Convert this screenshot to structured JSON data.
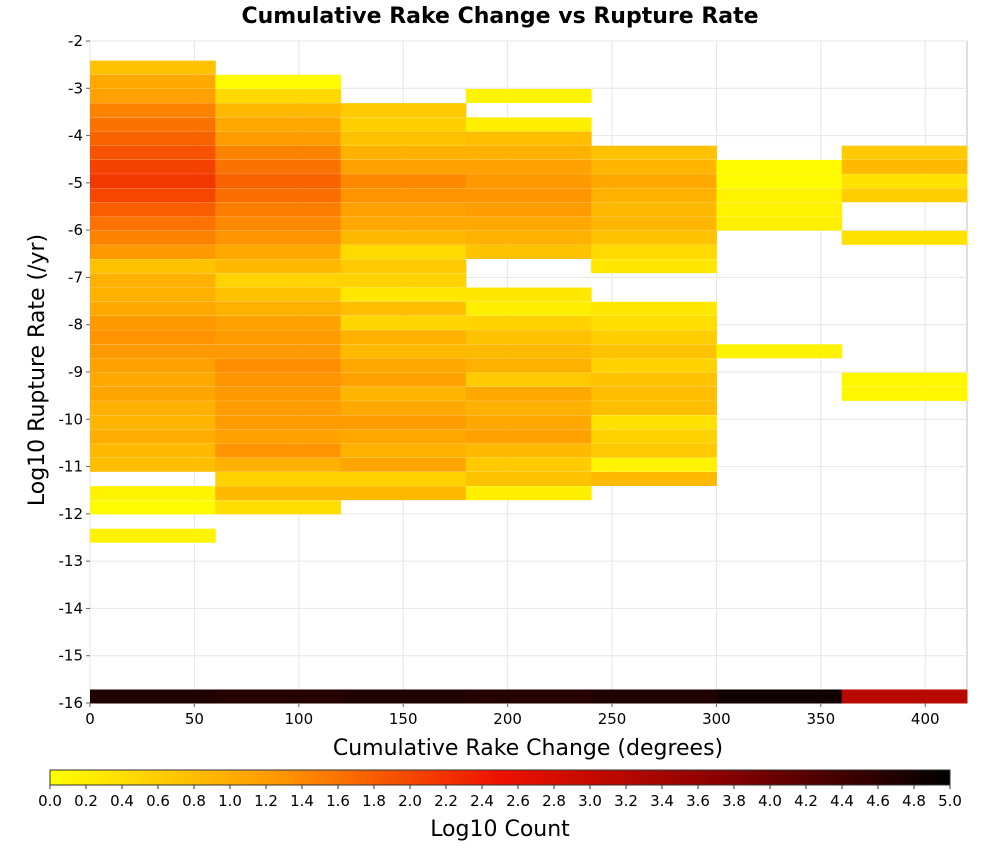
{
  "chart_data": {
    "type": "heatmap",
    "title": "Cumulative Rake Change vs Rupture Rate",
    "xlabel": "Cumulative Rake Change (degrees)",
    "ylabel": "Log10 Rupture Rate (/yr)",
    "xlim": [
      0,
      420
    ],
    "ylim": [
      -16,
      -2
    ],
    "x_ticks": [
      0,
      50,
      100,
      150,
      200,
      250,
      300,
      350,
      400
    ],
    "y_ticks": [
      -2,
      -3,
      -4,
      -5,
      -6,
      -7,
      -8,
      -9,
      -10,
      -11,
      -12,
      -13,
      -14,
      -15,
      -16
    ],
    "x_bin_width": 60,
    "y_bin_height": 0.2857,
    "grid": true,
    "colorbar": {
      "label": "Log10 Count",
      "range": [
        0,
        5
      ],
      "ticks": [
        "0.0",
        "0.2",
        "0.4",
        "0.6",
        "0.8",
        "1.0",
        "1.2",
        "1.4",
        "1.6",
        "1.8",
        "2.0",
        "2.2",
        "2.4",
        "2.6",
        "2.8",
        "3.0",
        "3.2",
        "3.4",
        "3.6",
        "3.8",
        "4.0",
        "4.2",
        "4.4",
        "4.6",
        "4.8",
        "5.0"
      ],
      "stops": [
        "#ffff00",
        "#ff9900",
        "#ee1100",
        "#880000",
        "#000000"
      ]
    },
    "columns": [
      {
        "x_start": 0,
        "cells": [
          {
            "y": -2.7,
            "v": 0.75
          },
          {
            "y": -3.0,
            "v": 1.05
          },
          {
            "y": -3.3,
            "v": 1.15
          },
          {
            "y": -3.6,
            "v": 1.45
          },
          {
            "y": -3.9,
            "v": 1.6
          },
          {
            "y": -4.2,
            "v": 1.75
          },
          {
            "y": -4.5,
            "v": 1.9
          },
          {
            "y": -4.8,
            "v": 2.05
          },
          {
            "y": -5.1,
            "v": 2.15
          },
          {
            "y": -5.4,
            "v": 2.0
          },
          {
            "y": -5.7,
            "v": 1.8
          },
          {
            "y": -6.0,
            "v": 1.6
          },
          {
            "y": -6.3,
            "v": 1.45
          },
          {
            "y": -6.6,
            "v": 1.25
          },
          {
            "y": -6.9,
            "v": 0.75
          },
          {
            "y": -7.2,
            "v": 0.95
          },
          {
            "y": -7.5,
            "v": 0.95
          },
          {
            "y": -7.8,
            "v": 1.05
          },
          {
            "y": -8.1,
            "v": 1.25
          },
          {
            "y": -8.4,
            "v": 1.3
          },
          {
            "y": -8.7,
            "v": 1.25
          },
          {
            "y": -9.0,
            "v": 1.15
          },
          {
            "y": -9.3,
            "v": 1.05
          },
          {
            "y": -9.6,
            "v": 1.1
          },
          {
            "y": -9.9,
            "v": 0.95
          },
          {
            "y": -10.2,
            "v": 0.9
          },
          {
            "y": -10.5,
            "v": 1.0
          },
          {
            "y": -10.8,
            "v": 0.85
          },
          {
            "y": -11.1,
            "v": 0.8
          },
          {
            "y": -11.7,
            "v": 0.15
          },
          {
            "y": -12.0,
            "v": 0.05
          },
          {
            "y": -12.6,
            "v": 0.15
          },
          {
            "y": -16.0,
            "v": 4.7
          }
        ]
      },
      {
        "x_start": 60,
        "cells": [
          {
            "y": -3.0,
            "v": 0.05
          },
          {
            "y": -3.3,
            "v": 0.45
          },
          {
            "y": -3.6,
            "v": 0.85
          },
          {
            "y": -3.9,
            "v": 1.05
          },
          {
            "y": -4.2,
            "v": 1.2
          },
          {
            "y": -4.5,
            "v": 1.45
          },
          {
            "y": -4.8,
            "v": 1.6
          },
          {
            "y": -5.1,
            "v": 1.75
          },
          {
            "y": -5.4,
            "v": 1.65
          },
          {
            "y": -5.7,
            "v": 1.5
          },
          {
            "y": -6.0,
            "v": 1.4
          },
          {
            "y": -6.3,
            "v": 1.3
          },
          {
            "y": -6.6,
            "v": 1.05
          },
          {
            "y": -6.9,
            "v": 0.85
          },
          {
            "y": -7.2,
            "v": 0.55
          },
          {
            "y": -7.5,
            "v": 0.75
          },
          {
            "y": -7.8,
            "v": 0.95
          },
          {
            "y": -8.1,
            "v": 1.15
          },
          {
            "y": -8.4,
            "v": 1.2
          },
          {
            "y": -8.7,
            "v": 1.25
          },
          {
            "y": -9.0,
            "v": 1.35
          },
          {
            "y": -9.3,
            "v": 1.3
          },
          {
            "y": -9.6,
            "v": 1.25
          },
          {
            "y": -9.9,
            "v": 1.2
          },
          {
            "y": -10.2,
            "v": 1.2
          },
          {
            "y": -10.5,
            "v": 1.15
          },
          {
            "y": -10.8,
            "v": 1.3
          },
          {
            "y": -11.1,
            "v": 0.95
          },
          {
            "y": -11.4,
            "v": 0.55
          },
          {
            "y": -11.7,
            "v": 0.85
          },
          {
            "y": -12.0,
            "v": 0.4
          },
          {
            "y": -16.0,
            "v": 4.65
          }
        ]
      },
      {
        "x_start": 120,
        "cells": [
          {
            "y": -3.6,
            "v": 0.65
          },
          {
            "y": -3.9,
            "v": 0.6
          },
          {
            "y": -4.2,
            "v": 0.75
          },
          {
            "y": -4.5,
            "v": 0.95
          },
          {
            "y": -4.8,
            "v": 1.15
          },
          {
            "y": -5.1,
            "v": 1.4
          },
          {
            "y": -5.4,
            "v": 1.3
          },
          {
            "y": -5.7,
            "v": 1.15
          },
          {
            "y": -6.0,
            "v": 1.05
          },
          {
            "y": -6.3,
            "v": 0.85
          },
          {
            "y": -6.6,
            "v": 0.45
          },
          {
            "y": -6.9,
            "v": 0.65
          },
          {
            "y": -7.2,
            "v": 0.55
          },
          {
            "y": -7.5,
            "v": 0.3
          },
          {
            "y": -7.8,
            "v": 0.8
          },
          {
            "y": -8.1,
            "v": 0.5
          },
          {
            "y": -8.4,
            "v": 0.95
          },
          {
            "y": -8.7,
            "v": 0.85
          },
          {
            "y": -9.0,
            "v": 1.05
          },
          {
            "y": -9.3,
            "v": 1.15
          },
          {
            "y": -9.6,
            "v": 0.9
          },
          {
            "y": -9.9,
            "v": 1.05
          },
          {
            "y": -10.2,
            "v": 1.2
          },
          {
            "y": -10.5,
            "v": 1.05
          },
          {
            "y": -10.8,
            "v": 0.95
          },
          {
            "y": -11.1,
            "v": 1.1
          },
          {
            "y": -11.4,
            "v": 0.55
          },
          {
            "y": -11.7,
            "v": 0.85
          },
          {
            "y": -16.0,
            "v": 4.7
          }
        ]
      },
      {
        "x_start": 180,
        "cells": [
          {
            "y": -3.3,
            "v": 0.15
          },
          {
            "y": -3.9,
            "v": 0.2
          },
          {
            "y": -4.2,
            "v": 0.8
          },
          {
            "y": -4.5,
            "v": 0.95
          },
          {
            "y": -4.8,
            "v": 1.15
          },
          {
            "y": -5.1,
            "v": 1.25
          },
          {
            "y": -5.4,
            "v": 1.3
          },
          {
            "y": -5.7,
            "v": 1.2
          },
          {
            "y": -6.0,
            "v": 1.05
          },
          {
            "y": -6.3,
            "v": 0.95
          },
          {
            "y": -6.6,
            "v": 0.75
          },
          {
            "y": -7.5,
            "v": 0.3
          },
          {
            "y": -7.8,
            "v": 0.2
          },
          {
            "y": -8.1,
            "v": 0.55
          },
          {
            "y": -8.4,
            "v": 0.75
          },
          {
            "y": -8.7,
            "v": 0.85
          },
          {
            "y": -9.0,
            "v": 0.95
          },
          {
            "y": -9.3,
            "v": 0.65
          },
          {
            "y": -9.6,
            "v": 1.05
          },
          {
            "y": -9.9,
            "v": 0.95
          },
          {
            "y": -10.2,
            "v": 1.05
          },
          {
            "y": -10.5,
            "v": 1.15
          },
          {
            "y": -10.8,
            "v": 0.85
          },
          {
            "y": -11.1,
            "v": 0.65
          },
          {
            "y": -11.4,
            "v": 0.75
          },
          {
            "y": -11.7,
            "v": 0.2
          },
          {
            "y": -16.0,
            "v": 4.65
          }
        ]
      },
      {
        "x_start": 240,
        "cells": [
          {
            "y": -4.5,
            "v": 0.75
          },
          {
            "y": -4.8,
            "v": 0.9
          },
          {
            "y": -5.1,
            "v": 1.05
          },
          {
            "y": -5.4,
            "v": 0.95
          },
          {
            "y": -5.7,
            "v": 0.85
          },
          {
            "y": -6.0,
            "v": 0.9
          },
          {
            "y": -6.3,
            "v": 0.75
          },
          {
            "y": -6.6,
            "v": 0.45
          },
          {
            "y": -6.9,
            "v": 0.3
          },
          {
            "y": -7.8,
            "v": 0.3
          },
          {
            "y": -8.1,
            "v": 0.4
          },
          {
            "y": -8.4,
            "v": 0.6
          },
          {
            "y": -8.7,
            "v": 0.75
          },
          {
            "y": -9.0,
            "v": 0.55
          },
          {
            "y": -9.3,
            "v": 0.75
          },
          {
            "y": -9.6,
            "v": 0.8
          },
          {
            "y": -9.9,
            "v": 0.8
          },
          {
            "y": -10.2,
            "v": 0.35
          },
          {
            "y": -10.5,
            "v": 0.55
          },
          {
            "y": -10.8,
            "v": 0.65
          },
          {
            "y": -11.1,
            "v": 0.15
          },
          {
            "y": -11.4,
            "v": 0.85
          },
          {
            "y": -16.0,
            "v": 4.7
          }
        ]
      },
      {
        "x_start": 300,
        "cells": [
          {
            "y": -4.8,
            "v": 0.05
          },
          {
            "y": -5.1,
            "v": 0.05
          },
          {
            "y": -5.4,
            "v": 0.15
          },
          {
            "y": -5.7,
            "v": 0.15
          },
          {
            "y": -6.0,
            "v": 0.2
          },
          {
            "y": -8.7,
            "v": 0.15
          },
          {
            "y": -16.0,
            "v": 4.85
          }
        ]
      },
      {
        "x_start": 360,
        "cells": [
          {
            "y": -4.5,
            "v": 0.65
          },
          {
            "y": -4.8,
            "v": 0.85
          },
          {
            "y": -5.1,
            "v": 0.35
          },
          {
            "y": -5.4,
            "v": 0.6
          },
          {
            "y": -6.3,
            "v": 0.35
          },
          {
            "y": -9.3,
            "v": 0.1
          },
          {
            "y": -9.6,
            "v": 0.1
          },
          {
            "y": -16.0,
            "v": 3.15
          }
        ]
      }
    ]
  }
}
